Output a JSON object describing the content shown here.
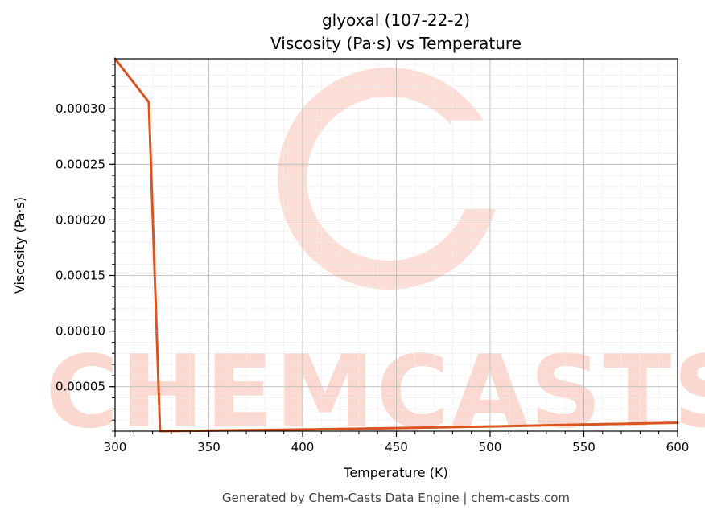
{
  "chart_data": {
    "type": "line",
    "title": "glyoxal (107-22-2)",
    "subtitle": "Viscosity (Pa·s) vs Temperature",
    "xlabel": "Temperature (K)",
    "ylabel": "Viscosity (Pa·s)",
    "xlim": [
      300,
      600
    ],
    "ylim": [
      1e-05,
      0.000345
    ],
    "x_ticks": [
      300,
      350,
      400,
      450,
      500,
      550,
      600
    ],
    "x_tick_labels": [
      "300",
      "350",
      "400",
      "450",
      "500",
      "550",
      "600"
    ],
    "y_ticks": [
      5e-05,
      0.0001,
      0.00015,
      0.0002,
      0.00025,
      0.0003
    ],
    "y_tick_labels": [
      "0.00005",
      "0.00010",
      "0.00015",
      "0.00020",
      "0.00025",
      "0.00030"
    ],
    "grid": true,
    "series": [
      {
        "color": "#d9541e",
        "x": [
          300,
          318,
          324,
          400,
          450,
          500,
          550,
          600
        ],
        "y": [
          0.000345,
          0.000306,
          1e-05,
          1.15e-05,
          1.28e-05,
          1.43e-05,
          1.59e-05,
          1.76e-05
        ]
      }
    ]
  },
  "watermark": {
    "text": "CHEMCASTS",
    "color": "#fbd8d0"
  },
  "footer": "Generated by Chem-Casts Data Engine | chem-casts.com"
}
